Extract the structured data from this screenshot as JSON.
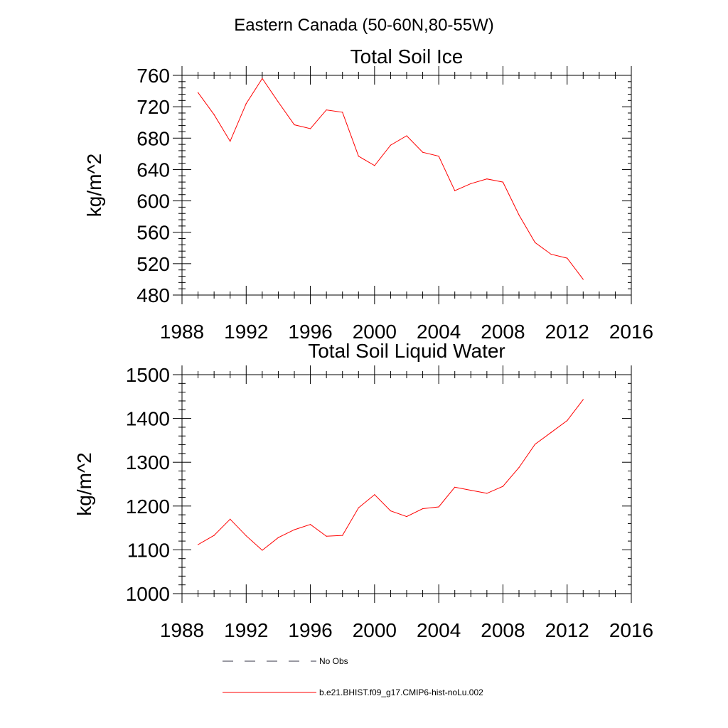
{
  "figure_title": "Eastern Canada (50-60N,80-55W)",
  "chart_data": [
    {
      "type": "line",
      "title": "Total Soil Ice",
      "xlabel": "",
      "ylabel": "kg/m^2",
      "xlim": [
        1988,
        2016
      ],
      "ylim": [
        480,
        760
      ],
      "xticks": [
        1988,
        1992,
        1996,
        2000,
        2004,
        2008,
        2012,
        2016
      ],
      "yticks": [
        480,
        520,
        560,
        600,
        640,
        680,
        720,
        760
      ],
      "x": [
        1989,
        1990,
        1991,
        1992,
        1993,
        1994,
        1995,
        1996,
        1997,
        1998,
        1999,
        2000,
        2001,
        2002,
        2003,
        2004,
        2005,
        2006,
        2007,
        2008,
        2009,
        2010,
        2011,
        2012,
        2013
      ],
      "series": [
        {
          "name": "b.e21.BHIST.f09_g17.CMIP6-hist-noLu.002",
          "color": "#ff0000",
          "values": [
            738,
            710,
            676,
            724,
            756,
            726,
            697,
            692,
            716,
            713,
            657,
            645,
            671,
            683,
            662,
            657,
            613,
            622,
            628,
            624,
            582,
            547,
            532,
            527,
            500
          ]
        }
      ],
      "grid": false
    },
    {
      "type": "line",
      "title": "Total Soil Liquid Water",
      "xlabel": "",
      "ylabel": "kg/m^2",
      "xlim": [
        1988,
        2016
      ],
      "ylim": [
        1000,
        1500
      ],
      "xticks": [
        1988,
        1992,
        1996,
        2000,
        2004,
        2008,
        2012,
        2016
      ],
      "yticks": [
        1000,
        1100,
        1200,
        1300,
        1400,
        1500
      ],
      "x": [
        1989,
        1990,
        1991,
        1992,
        1993,
        1994,
        1995,
        1996,
        1997,
        1998,
        1999,
        2000,
        2001,
        2002,
        2003,
        2004,
        2005,
        2006,
        2007,
        2008,
        2009,
        2010,
        2011,
        2012,
        2013
      ],
      "series": [
        {
          "name": "b.e21.BHIST.f09_g17.CMIP6-hist-noLu.002",
          "color": "#ff0000",
          "values": [
            1112,
            1133,
            1170,
            1132,
            1099,
            1128,
            1146,
            1158,
            1131,
            1133,
            1196,
            1226,
            1189,
            1176,
            1194,
            1198,
            1243,
            1236,
            1229,
            1245,
            1288,
            1341,
            1368,
            1395,
            1443
          ]
        }
      ],
      "grid": false
    }
  ],
  "legend": {
    "position": "bottom",
    "entries": [
      {
        "label": "No Obs",
        "style": "dashed",
        "color": "#333344"
      },
      {
        "label": "b.e21.BHIST.f09_g17.CMIP6-hist-noLu.002",
        "style": "solid",
        "color": "#ff0000"
      }
    ]
  }
}
